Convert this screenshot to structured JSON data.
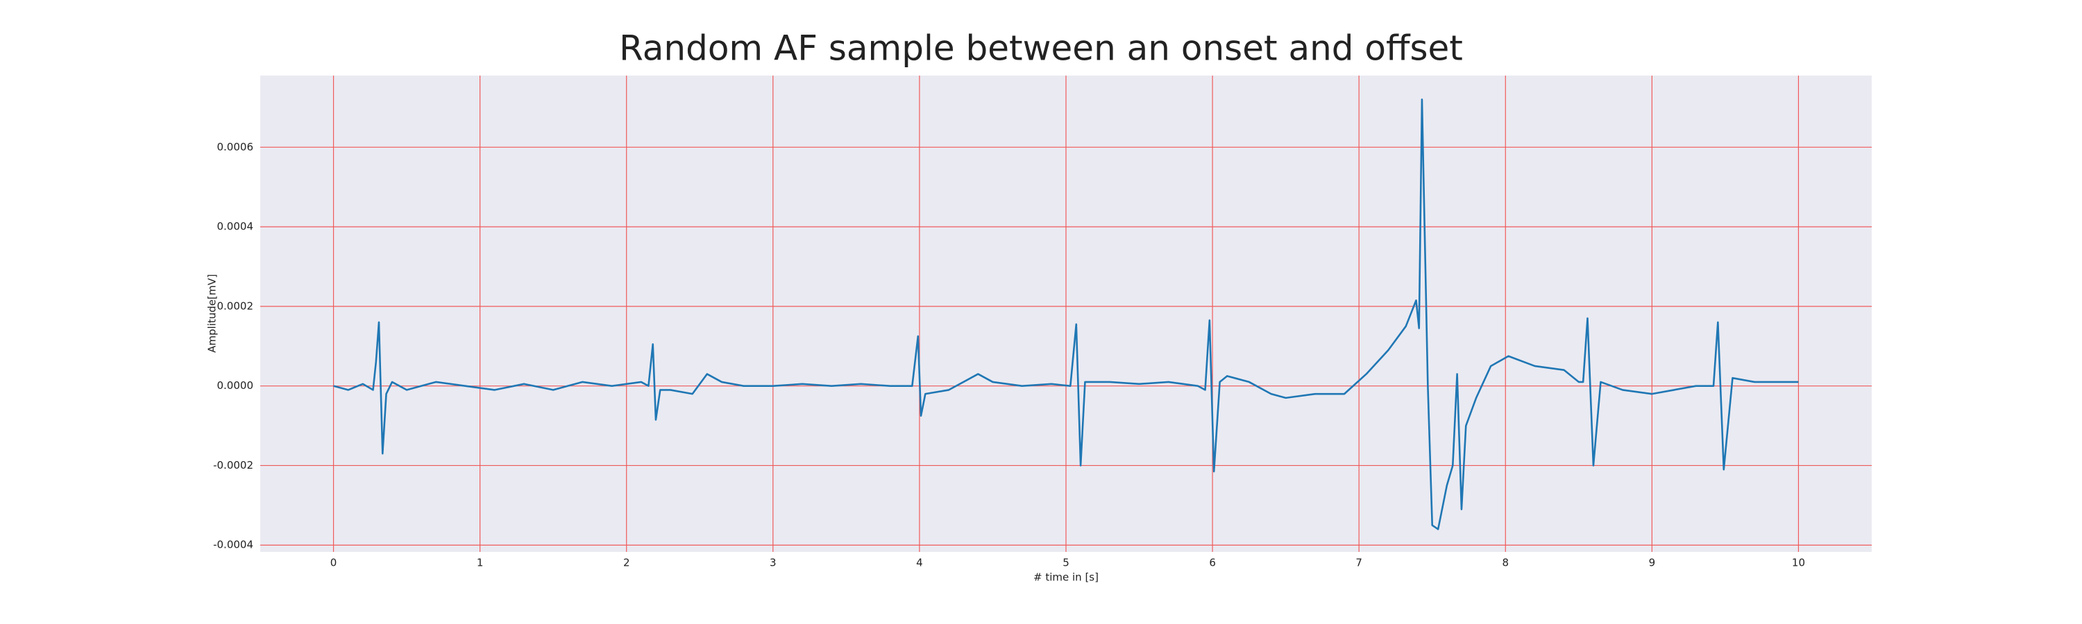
{
  "chart_data": {
    "type": "line",
    "title": "Random AF sample between an onset and offset",
    "xlabel": "# time in [s]",
    "ylabel": "Amplitude[mV]",
    "color": "#1f77b4",
    "grid": true,
    "grid_color": "#f05a5a",
    "background": "#eaeaf2",
    "xlim": [
      -0.5,
      10.5
    ],
    "ylim": [
      -0.000417,
      0.00078
    ],
    "xticks": [
      0,
      1,
      2,
      3,
      4,
      5,
      6,
      7,
      8,
      9,
      10
    ],
    "yticks": [
      {
        "value": -0.0004,
        "label": "-0.0004"
      },
      {
        "value": -0.0002,
        "label": "-0.0002"
      },
      {
        "value": 0,
        "label": "0.0000"
      },
      {
        "value": 0.0002,
        "label": "0.0002"
      },
      {
        "value": 0.0004,
        "label": "0.0004"
      },
      {
        "value": 0.0006,
        "label": "0.0006"
      }
    ],
    "x": [
      0,
      0.1,
      0.2,
      0.27,
      0.29,
      0.31,
      0.335,
      0.36,
      0.4,
      0.5,
      0.7,
      0.9,
      1.1,
      1.3,
      1.5,
      1.7,
      1.9,
      2.1,
      2.15,
      2.18,
      2.2,
      2.23,
      2.3,
      2.45,
      2.55,
      2.65,
      2.8,
      3.0,
      3.2,
      3.4,
      3.6,
      3.8,
      3.95,
      3.99,
      4.01,
      4.04,
      4.2,
      4.4,
      4.5,
      4.7,
      4.9,
      5.03,
      5.07,
      5.1,
      5.13,
      5.3,
      5.5,
      5.7,
      5.9,
      5.95,
      5.98,
      6.01,
      6.05,
      6.1,
      6.25,
      6.4,
      6.5,
      6.7,
      6.9,
      7.05,
      7.2,
      7.32,
      7.39,
      7.41,
      7.43,
      7.47,
      7.5,
      7.54,
      7.6,
      7.64,
      7.67,
      7.7,
      7.73,
      7.8,
      7.9,
      8.02,
      8.2,
      8.4,
      8.5,
      8.53,
      8.56,
      8.6,
      8.65,
      8.8,
      9.0,
      9.15,
      9.3,
      9.42,
      9.45,
      9.49,
      9.55,
      9.7,
      9.8,
      10
    ],
    "values": [
      0,
      -1e-05,
      5e-06,
      -1e-05,
      6e-05,
      0.00016,
      -0.00017,
      -2e-05,
      1e-05,
      -1e-05,
      1e-05,
      0,
      -1e-05,
      5e-06,
      -1e-05,
      1e-05,
      0,
      1e-05,
      0,
      0.000105,
      -8.5e-05,
      -1e-05,
      -1e-05,
      -2e-05,
      3e-05,
      1e-05,
      0,
      0,
      5e-06,
      0,
      5e-06,
      0,
      0,
      0.000125,
      -7.5e-05,
      -2e-05,
      -1e-05,
      3e-05,
      1e-05,
      0,
      5e-06,
      0,
      0.000155,
      -0.0002,
      1e-05,
      1e-05,
      5e-06,
      1e-05,
      0,
      -1e-05,
      0.000165,
      -0.000215,
      1e-05,
      2.5e-05,
      1e-05,
      -2e-05,
      -3e-05,
      -2e-05,
      -2e-05,
      3e-05,
      9e-05,
      0.00015,
      0.000215,
      0.000145,
      0.00072,
      0,
      -0.00035,
      -0.00036,
      -0.00025,
      -0.0002,
      3e-05,
      -0.00031,
      -0.0001,
      -3e-05,
      5e-05,
      7.5e-05,
      5e-05,
      4e-05,
      1e-05,
      1e-05,
      0.00017,
      -0.0002,
      1e-05,
      -1e-05,
      -2e-05,
      -1e-05,
      0,
      0,
      0.00016,
      -0.00021,
      2e-05,
      1e-05,
      1e-05,
      1e-05
    ]
  }
}
